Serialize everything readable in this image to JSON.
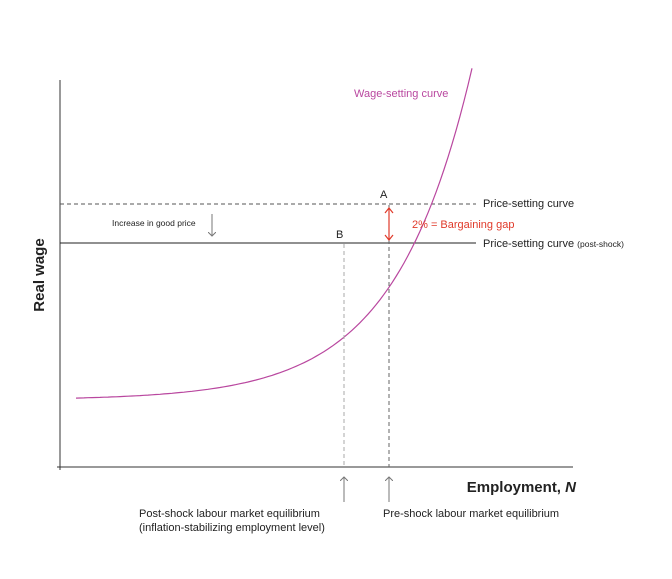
{
  "chart_data": {
    "type": "line",
    "xlabel": "Employment, N",
    "ylabel": "Real wage",
    "colors": {
      "wage_curve": "#b9479f",
      "bargaining_gap": "#e03a2a",
      "axis": "#333333",
      "dashed_guides": "#666666"
    },
    "series": [
      {
        "name": "Wage-setting curve",
        "style": "curve"
      },
      {
        "name": "Price-setting curve",
        "style": "dashed-horizontal"
      },
      {
        "name": "Price-setting curve",
        "name_suffix": "(post-shock)",
        "style": "solid-horizontal"
      }
    ],
    "points": [
      {
        "label": "A"
      },
      {
        "label": "B"
      }
    ],
    "annotations": {
      "price_increase": "Increase in good price",
      "bargaining_gap": "2% = Bargaining gap",
      "post_shock_eq_line1": "Post-shock labour market equilibrium",
      "post_shock_eq_line2": "(inflation-stabilizing employment level)",
      "pre_shock_eq": "Pre-shock labour market equilibrium"
    }
  }
}
